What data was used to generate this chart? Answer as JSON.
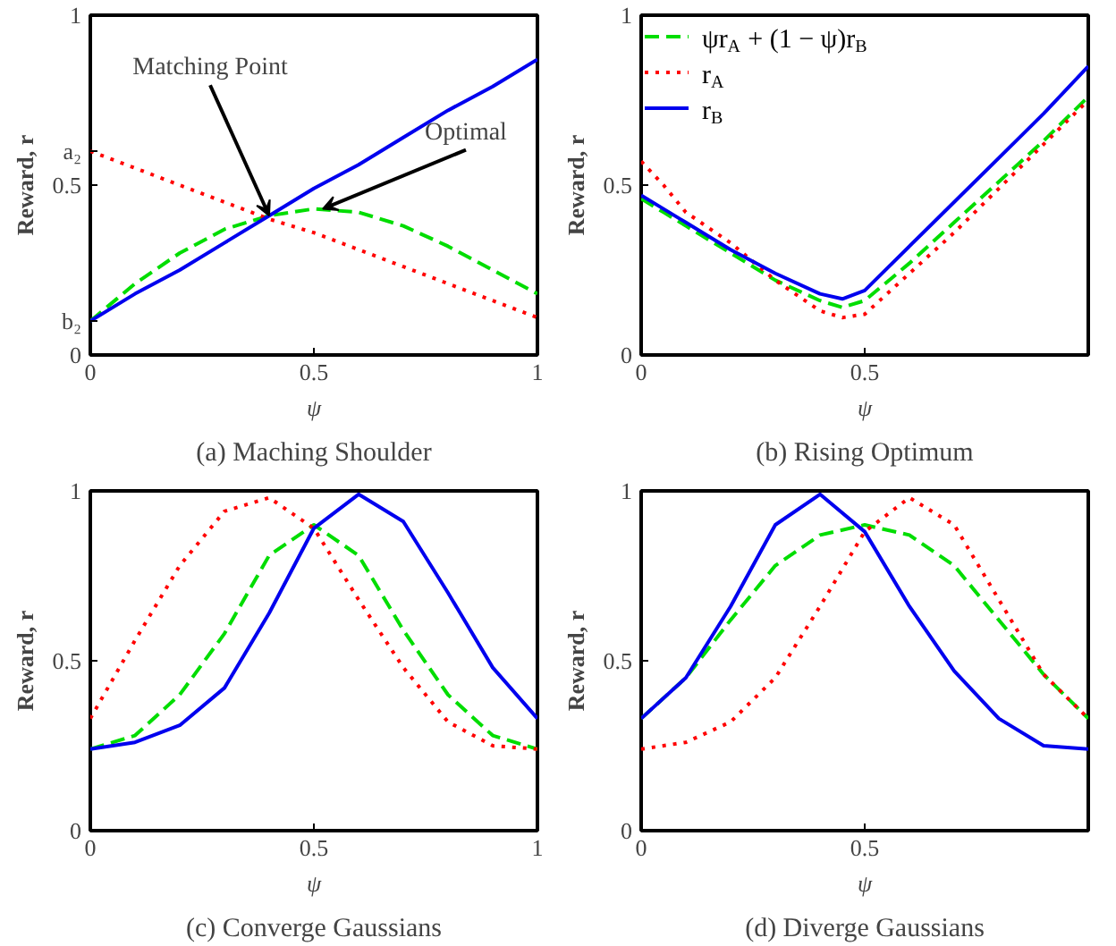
{
  "chart_data": [
    {
      "type": "line",
      "title": "(a) Maching Shoulder",
      "xlabel": "ψ",
      "ylabel": "Reward, r",
      "xlim": [
        0,
        1
      ],
      "ylim": [
        0,
        1
      ],
      "xticks": [
        0,
        0.5,
        1
      ],
      "yticks": [
        0,
        {
          "value": 0.1,
          "label": "b₂"
        },
        0.5,
        {
          "value": 0.6,
          "label": "a₂"
        },
        1
      ],
      "grid": false,
      "x": [
        0,
        0.1,
        0.2,
        0.3,
        0.4,
        0.5,
        0.6,
        0.7,
        0.8,
        0.9,
        1
      ],
      "series": [
        {
          "color": "#00dd00",
          "line_style": "dashed",
          "values": [
            0.1,
            0.21,
            0.3,
            0.37,
            0.41,
            0.43,
            0.42,
            0.38,
            0.32,
            0.25,
            0.18
          ]
        },
        {
          "color": "#ff0000",
          "line_style": "dotted",
          "values": [
            0.6,
            0.55,
            0.5,
            0.45,
            0.4,
            0.36,
            0.31,
            0.26,
            0.21,
            0.16,
            0.11
          ]
        },
        {
          "color": "#0000ee",
          "line_style": "solid",
          "values": [
            0.1,
            0.18,
            0.25,
            0.33,
            0.41,
            0.49,
            0.56,
            0.64,
            0.72,
            0.79,
            0.87
          ]
        }
      ],
      "annotations": [
        {
          "text": "Matching Point",
          "x": 0.4,
          "y": 0.41
        },
        {
          "text": "Optimal",
          "x": 0.52,
          "y": 0.43
        }
      ]
    },
    {
      "type": "line",
      "title": "(b) Rising Optimum",
      "xlabel": "ψ",
      "ylabel": "Reward, r",
      "xlim": [
        0,
        1
      ],
      "ylim": [
        0,
        1
      ],
      "xticks": [
        0,
        0.5
      ],
      "yticks": [
        0,
        0.5,
        1
      ],
      "grid": false,
      "legend": "top left",
      "x": [
        0,
        0.05,
        0.1,
        0.2,
        0.3,
        0.4,
        0.45,
        0.5,
        0.6,
        0.7,
        0.8,
        0.9,
        1
      ],
      "series": [
        {
          "name": "ψr$_{A}$ + (1 − ψ)r$_{B}$",
          "color": "#00dd00",
          "line_style": "dashed",
          "values": [
            0.46,
            0.42,
            0.38,
            0.3,
            0.22,
            0.16,
            0.14,
            0.16,
            0.27,
            0.39,
            0.51,
            0.63,
            0.76
          ]
        },
        {
          "name": "r$_{A}$",
          "color": "#ff0000",
          "line_style": "dotted",
          "values": [
            0.57,
            0.5,
            0.42,
            0.33,
            0.22,
            0.13,
            0.11,
            0.12,
            0.24,
            0.36,
            0.49,
            0.62,
            0.75
          ]
        },
        {
          "name": "r$_{B}$",
          "color": "#0000ee",
          "line_style": "solid",
          "values": [
            0.47,
            0.43,
            0.39,
            0.31,
            0.24,
            0.18,
            0.165,
            0.19,
            0.32,
            0.45,
            0.58,
            0.71,
            0.85
          ]
        }
      ]
    },
    {
      "type": "line",
      "title": "(c) Converge Gaussians",
      "xlabel": "ψ",
      "ylabel": "Reward, r",
      "xlim": [
        0,
        1
      ],
      "ylim": [
        0,
        1
      ],
      "xticks": [
        0,
        0.5,
        1
      ],
      "yticks": [
        0,
        0.5,
        1
      ],
      "grid": false,
      "x": [
        0,
        0.1,
        0.2,
        0.3,
        0.4,
        0.5,
        0.6,
        0.7,
        0.8,
        0.9,
        1
      ],
      "series": [
        {
          "color": "#00dd00",
          "line_style": "dashed",
          "values": [
            0.24,
            0.28,
            0.4,
            0.58,
            0.81,
            0.9,
            0.81,
            0.59,
            0.4,
            0.28,
            0.24
          ]
        },
        {
          "color": "#ff0000",
          "line_style": "dotted",
          "values": [
            0.33,
            0.56,
            0.78,
            0.94,
            0.98,
            0.89,
            0.68,
            0.48,
            0.32,
            0.25,
            0.24
          ]
        },
        {
          "color": "#0000ee",
          "line_style": "solid",
          "values": [
            0.24,
            0.26,
            0.31,
            0.42,
            0.64,
            0.89,
            0.99,
            0.91,
            0.7,
            0.48,
            0.33
          ]
        }
      ]
    },
    {
      "type": "line",
      "title": "(d) Diverge Gaussians",
      "xlabel": "ψ",
      "ylabel": "Reward, r",
      "xlim": [
        0,
        1
      ],
      "ylim": [
        0,
        1
      ],
      "xticks": [
        0,
        0.5
      ],
      "yticks": [
        0,
        0.5,
        1
      ],
      "grid": false,
      "x": [
        0,
        0.1,
        0.2,
        0.3,
        0.4,
        0.5,
        0.6,
        0.7,
        0.8,
        0.9,
        1
      ],
      "series": [
        {
          "color": "#00dd00",
          "line_style": "dashed",
          "values": [
            0.33,
            0.45,
            0.62,
            0.78,
            0.87,
            0.9,
            0.87,
            0.78,
            0.62,
            0.46,
            0.33
          ]
        },
        {
          "color": "#ff0000",
          "line_style": "dotted",
          "values": [
            0.24,
            0.26,
            0.32,
            0.45,
            0.66,
            0.88,
            0.98,
            0.9,
            0.68,
            0.46,
            0.33
          ]
        },
        {
          "color": "#0000ee",
          "line_style": "solid",
          "values": [
            0.33,
            0.45,
            0.66,
            0.9,
            0.99,
            0.88,
            0.66,
            0.47,
            0.33,
            0.25,
            0.24
          ]
        }
      ]
    }
  ]
}
